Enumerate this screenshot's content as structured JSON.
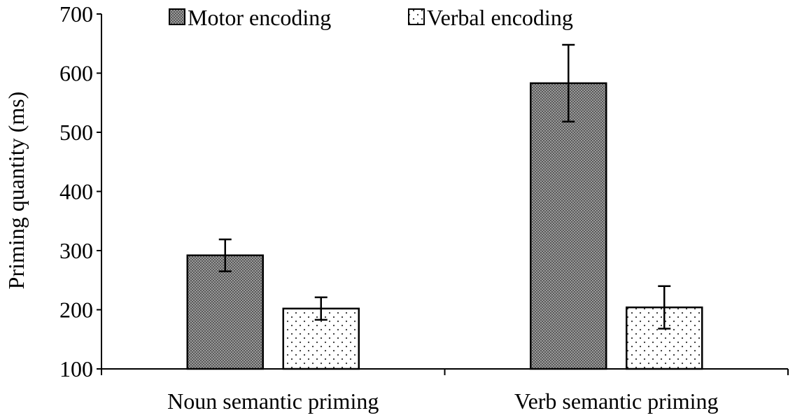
{
  "chart_data": {
    "type": "bar",
    "ylabel": "Priming quantity (ms)",
    "xlabel": "",
    "ylim": [
      100,
      700
    ],
    "yticks": [
      100,
      200,
      300,
      400,
      500,
      600,
      700
    ],
    "categories": [
      "Noun semantic priming",
      "Verb semantic priming"
    ],
    "series": [
      {
        "name": "Motor encoding",
        "values": [
          292,
          583
        ],
        "errors": [
          27,
          65
        ],
        "fill": "crosshatch-dark"
      },
      {
        "name": "Verbal encoding",
        "values": [
          202,
          204
        ],
        "errors": [
          19,
          36
        ],
        "fill": "dotted-white"
      }
    ],
    "legend_position": "top",
    "grid": false
  },
  "colors": {
    "motor_fill": "#8a8a8a",
    "verbal_fill": "#ffffff",
    "stroke": "#000000"
  }
}
